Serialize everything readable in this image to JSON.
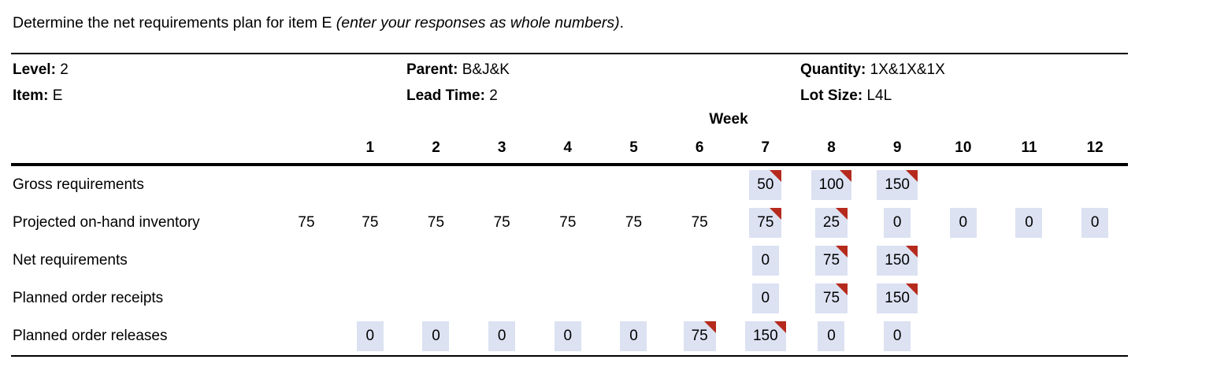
{
  "title": {
    "main": "Determine the net requirements plan for item E ",
    "instruction_italic": "(enter your responses as whole numbers)",
    "suffix": "."
  },
  "info": {
    "level_label": "Level:",
    "level_value": "2",
    "item_label": "Item:",
    "item_value": "E",
    "parent_label": "Parent:",
    "parent_value": "B&J&K",
    "lead_time_label": "Lead Time:",
    "lead_time_value": "2",
    "quantity_label": "Quantity:",
    "quantity_value": "1X&1X&1X",
    "lot_size_label": "Lot Size:",
    "lot_size_value": "L4L"
  },
  "colors": {
    "answer_cell_bg": "#dce2f2",
    "marker_red": "#b52a1d"
  },
  "table": {
    "week_header": "Week",
    "week_numbers": [
      "1",
      "2",
      "3",
      "4",
      "5",
      "6",
      "7",
      "8",
      "9",
      "10",
      "11",
      "12"
    ],
    "rows": [
      {
        "key": "gross-requirements",
        "label": "Gross requirements",
        "initial": "",
        "cells": [
          {
            "value": "",
            "filled": false,
            "marker": false
          },
          {
            "value": "",
            "filled": false,
            "marker": false
          },
          {
            "value": "",
            "filled": false,
            "marker": false
          },
          {
            "value": "",
            "filled": false,
            "marker": false
          },
          {
            "value": "",
            "filled": false,
            "marker": false
          },
          {
            "value": "",
            "filled": false,
            "marker": false
          },
          {
            "value": "50",
            "filled": true,
            "marker": true
          },
          {
            "value": "100",
            "filled": true,
            "marker": true
          },
          {
            "value": "150",
            "filled": true,
            "marker": true
          },
          {
            "value": "",
            "filled": false,
            "marker": false
          },
          {
            "value": "",
            "filled": false,
            "marker": false
          },
          {
            "value": "",
            "filled": false,
            "marker": false
          }
        ]
      },
      {
        "key": "projected-on-hand-inventory",
        "label": "Projected on-hand inventory",
        "initial": "75",
        "cells": [
          {
            "value": "75",
            "filled": false,
            "marker": false
          },
          {
            "value": "75",
            "filled": false,
            "marker": false
          },
          {
            "value": "75",
            "filled": false,
            "marker": false
          },
          {
            "value": "75",
            "filled": false,
            "marker": false
          },
          {
            "value": "75",
            "filled": false,
            "marker": false
          },
          {
            "value": "75",
            "filled": false,
            "marker": false
          },
          {
            "value": "75",
            "filled": true,
            "marker": true
          },
          {
            "value": "25",
            "filled": true,
            "marker": true
          },
          {
            "value": "0",
            "filled": true,
            "marker": false
          },
          {
            "value": "0",
            "filled": true,
            "marker": false
          },
          {
            "value": "0",
            "filled": true,
            "marker": false
          },
          {
            "value": "0",
            "filled": true,
            "marker": false
          }
        ]
      },
      {
        "key": "net-requirements",
        "label": "Net requirements",
        "initial": "",
        "cells": [
          {
            "value": "",
            "filled": false,
            "marker": false
          },
          {
            "value": "",
            "filled": false,
            "marker": false
          },
          {
            "value": "",
            "filled": false,
            "marker": false
          },
          {
            "value": "",
            "filled": false,
            "marker": false
          },
          {
            "value": "",
            "filled": false,
            "marker": false
          },
          {
            "value": "",
            "filled": false,
            "marker": false
          },
          {
            "value": "0",
            "filled": true,
            "marker": false
          },
          {
            "value": "75",
            "filled": true,
            "marker": true
          },
          {
            "value": "150",
            "filled": true,
            "marker": true
          },
          {
            "value": "",
            "filled": false,
            "marker": false
          },
          {
            "value": "",
            "filled": false,
            "marker": false
          },
          {
            "value": "",
            "filled": false,
            "marker": false
          }
        ]
      },
      {
        "key": "planned-order-receipts",
        "label": "Planned order receipts",
        "initial": "",
        "cells": [
          {
            "value": "",
            "filled": false,
            "marker": false
          },
          {
            "value": "",
            "filled": false,
            "marker": false
          },
          {
            "value": "",
            "filled": false,
            "marker": false
          },
          {
            "value": "",
            "filled": false,
            "marker": false
          },
          {
            "value": "",
            "filled": false,
            "marker": false
          },
          {
            "value": "",
            "filled": false,
            "marker": false
          },
          {
            "value": "0",
            "filled": true,
            "marker": false
          },
          {
            "value": "75",
            "filled": true,
            "marker": true
          },
          {
            "value": "150",
            "filled": true,
            "marker": true
          },
          {
            "value": "",
            "filled": false,
            "marker": false
          },
          {
            "value": "",
            "filled": false,
            "marker": false
          },
          {
            "value": "",
            "filled": false,
            "marker": false
          }
        ]
      },
      {
        "key": "planned-order-releases",
        "label": "Planned order releases",
        "initial": "",
        "cells": [
          {
            "value": "0",
            "filled": true,
            "marker": false
          },
          {
            "value": "0",
            "filled": true,
            "marker": false
          },
          {
            "value": "0",
            "filled": true,
            "marker": false
          },
          {
            "value": "0",
            "filled": true,
            "marker": false
          },
          {
            "value": "0",
            "filled": true,
            "marker": false
          },
          {
            "value": "75",
            "filled": true,
            "marker": true
          },
          {
            "value": "150",
            "filled": true,
            "marker": true
          },
          {
            "value": "0",
            "filled": true,
            "marker": false
          },
          {
            "value": "0",
            "filled": true,
            "marker": false
          },
          {
            "value": "",
            "filled": false,
            "marker": false
          },
          {
            "value": "",
            "filled": false,
            "marker": false
          },
          {
            "value": "",
            "filled": false,
            "marker": false
          }
        ]
      }
    ]
  }
}
